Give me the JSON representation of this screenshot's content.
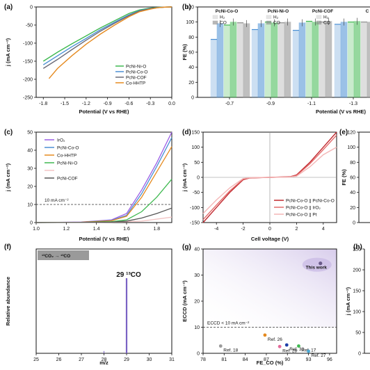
{
  "chart_data": [
    {
      "panel": "(a)",
      "type": "line",
      "xlabel": "Potential (V vs RHE)",
      "ylabel": "j (mA cm⁻²)",
      "xlim": [
        -1.9,
        0.0
      ],
      "ylim": [
        -250,
        0
      ],
      "xticks": [
        "-1.8",
        "-1.5",
        "-1.2",
        "-0.9",
        "-0.6",
        "-0.3",
        "0.0"
      ],
      "yticks": [
        "0",
        "-50",
        "-100",
        "-150",
        "-200",
        "-250"
      ],
      "legend": "bottom-right",
      "series": [
        {
          "name": "PcNi-Ni-O",
          "color": "#3fb950",
          "x": [
            -1.8,
            -1.6,
            -1.4,
            -1.2,
            -1.0,
            -0.8,
            -0.6,
            -0.45,
            -0.3,
            -0.2,
            -0.1,
            0.0
          ],
          "y": [
            -150,
            -125,
            -102,
            -80,
            -58,
            -38,
            -18,
            -8,
            -3,
            -1,
            -0.5,
            0
          ]
        },
        {
          "name": "PcNi-Co-O",
          "color": "#4a8fd4",
          "x": [
            -1.8,
            -1.6,
            -1.4,
            -1.2,
            -1.0,
            -0.8,
            -0.6,
            -0.45,
            -0.3,
            -0.2,
            -0.1,
            0.0
          ],
          "y": [
            -160,
            -135,
            -110,
            -87,
            -63,
            -42,
            -22,
            -10,
            -4,
            -1.5,
            -0.5,
            0
          ]
        },
        {
          "name": "PcNi-COF",
          "color": "#6b6b78",
          "x": [
            -1.8,
            -1.6,
            -1.4,
            -1.2,
            -1.0,
            -0.8,
            -0.6,
            -0.45,
            -0.3,
            -0.2,
            -0.1,
            0.0
          ],
          "y": [
            -170,
            -145,
            -118,
            -92,
            -67,
            -45,
            -24,
            -11,
            -5,
            -2,
            -0.5,
            0
          ]
        },
        {
          "name": "Co-HHTP",
          "color": "#e58a1f",
          "x": [
            -1.72,
            -1.6,
            -1.4,
            -1.2,
            -1.0,
            -0.8,
            -0.6,
            -0.45,
            -0.3,
            -0.2,
            -0.1,
            0.0
          ],
          "y": [
            -198,
            -170,
            -135,
            -103,
            -75,
            -50,
            -27,
            -13,
            -6,
            -2,
            -0.5,
            0
          ]
        }
      ]
    },
    {
      "panel": "(b)",
      "type": "bar",
      "xlabel": "Potential (V vs RHE)",
      "ylabel": "FE (%)",
      "ylim": [
        0,
        120
      ],
      "yticks": [
        "0",
        "20",
        "40",
        "60",
        "80",
        "100",
        "120"
      ],
      "categories": [
        "-0.7",
        "-0.9",
        "-1.1",
        "-1.3"
      ],
      "group_labels": [
        "PcNi-Co-O",
        "PcNi-Ni-O",
        "PcNi-COF",
        "C"
      ],
      "legend_entries": [
        "H₂",
        "CO"
      ],
      "series": [
        {
          "name": "PcNi-Co-O",
          "color": "#4a8fd4",
          "h2": [
            77,
            90,
            89,
            97
          ],
          "co": [
            98,
            98,
            99,
            100
          ]
        },
        {
          "name": "PcNi-Ni-O",
          "color": "#3fb950",
          "h2": [
            96,
            100,
            101,
            100
          ],
          "co": [
            100,
            99,
            100,
            101
          ]
        },
        {
          "name": "PcNi-COF",
          "color": "#8c8c8c",
          "h2": [
            99,
            99,
            100,
            100
          ],
          "co": [
            98,
            100,
            101,
            100
          ]
        }
      ]
    },
    {
      "panel": "(c)",
      "type": "line",
      "xlabel": "Potential (V vs RHE)",
      "ylabel": "j (mA cm⁻²)",
      "xlim": [
        1.0,
        1.9
      ],
      "ylim": [
        0,
        50
      ],
      "xticks": [
        "1.0",
        "1.2",
        "1.4",
        "1.6",
        "1.8"
      ],
      "yticks": [
        "0",
        "10",
        "20",
        "30",
        "40",
        "50"
      ],
      "annotation": "10 mA cm⁻²",
      "reference_y": 10,
      "legend": "top-left",
      "series": [
        {
          "name": "IrO₂",
          "color": "#9b5de5",
          "x": [
            1.0,
            1.3,
            1.5,
            1.6,
            1.7,
            1.8,
            1.9
          ],
          "y": [
            0,
            0.3,
            1.5,
            5,
            18,
            33,
            50
          ]
        },
        {
          "name": "PcNi-Co-O",
          "color": "#4a8fd4",
          "x": [
            1.0,
            1.3,
            1.5,
            1.6,
            1.7,
            1.8,
            1.9
          ],
          "y": [
            0,
            0.2,
            1.2,
            4,
            16,
            31,
            47
          ]
        },
        {
          "name": "Co-HHTP",
          "color": "#e58a1f",
          "x": [
            1.0,
            1.3,
            1.5,
            1.6,
            1.7,
            1.8,
            1.9
          ],
          "y": [
            0,
            0.2,
            1,
            3.5,
            14,
            28,
            42
          ]
        },
        {
          "name": "PcNi-Ni-O",
          "color": "#3fb950",
          "x": [
            1.0,
            1.3,
            1.5,
            1.6,
            1.7,
            1.8,
            1.9
          ],
          "y": [
            0,
            0.1,
            0.5,
            1.5,
            6,
            14,
            24
          ]
        },
        {
          "name": "",
          "color": "#f2c4c4",
          "x": [
            1.0,
            1.3,
            1.5,
            1.7,
            1.9
          ],
          "y": [
            0,
            0.1,
            0.2,
            0.8,
            3
          ]
        },
        {
          "name": "PcNi-COF",
          "color": "#555555",
          "x": [
            1.0,
            1.3,
            1.5,
            1.6,
            1.7,
            1.8,
            1.9
          ],
          "y": [
            0,
            0.1,
            0.3,
            0.8,
            2.5,
            5,
            8
          ]
        }
      ]
    },
    {
      "panel": "(d)",
      "type": "line",
      "xlabel": "Cell voltage (V)",
      "ylabel": "j (mA cm⁻²)",
      "xlim": [
        -5,
        5
      ],
      "ylim": [
        -150,
        150
      ],
      "xticks": [
        "-4",
        "-2",
        "0",
        "2",
        "4"
      ],
      "yticks": [
        "150",
        "100",
        "50",
        "0",
        "-50",
        "-100",
        "-150"
      ],
      "legend": "bottom-right",
      "series": [
        {
          "name": "PcNi-Co-O || PcNi-Co-O",
          "color": "#c0282e",
          "x": [
            -5,
            -4,
            -3,
            -2,
            -1.5,
            0,
            1.5,
            2,
            3,
            4,
            5
          ],
          "y": [
            -150,
            -100,
            -50,
            -8,
            -2,
            0,
            2,
            8,
            50,
            100,
            150
          ]
        },
        {
          "name": "PcNi-Co-O || IrO₂",
          "color": "#e36a6a",
          "x": [
            -5,
            -4,
            -3,
            -2,
            -1.5,
            0,
            1.5,
            2,
            3,
            4,
            5
          ],
          "y": [
            -140,
            -92,
            -45,
            -6,
            -1.5,
            0,
            1.5,
            6,
            45,
            92,
            140
          ]
        },
        {
          "name": "PcNi-Co-O || Pt",
          "color": "#f4b6b6",
          "x": [
            -5,
            -4,
            -3,
            -2,
            -1.5,
            0,
            1.5,
            2,
            3,
            4,
            5
          ],
          "y": [
            -120,
            -75,
            -35,
            -4,
            -1,
            0,
            1,
            4,
            35,
            75,
            100
          ]
        }
      ]
    },
    {
      "panel": "(e)",
      "type": "bar",
      "ylabel": "FE (%)",
      "ylim": [
        0,
        120
      ],
      "yticks": [
        "0",
        "20",
        "40",
        "60",
        "80",
        "100",
        "120"
      ]
    },
    {
      "panel": "(f)",
      "type": "bar",
      "xlabel": "m/z",
      "ylabel": "Relative abundance",
      "xlim": [
        25,
        31
      ],
      "xticks": [
        "25",
        "26",
        "27",
        "28",
        "29",
        "30",
        "31"
      ],
      "title_box": "¹³CO₂ → ¹³CO",
      "peak_label": "29 ¹³CO",
      "peaks": [
        {
          "x": 28,
          "value": 0.03
        },
        {
          "x": 29,
          "value": 1.0
        }
      ]
    },
    {
      "panel": "(g)",
      "type": "scatter",
      "xlabel": "FE_CO (%)",
      "ylabel": "ECCD (mA cm⁻²)",
      "xlim": [
        78,
        97
      ],
      "ylim": [
        0,
        40
      ],
      "xticks": [
        "78",
        "81",
        "84",
        "87",
        "90",
        "93",
        "96"
      ],
      "yticks": [
        "0",
        "10",
        "20",
        "30",
        "40"
      ],
      "threshold_label": "ECCD < 10 mA cm⁻²",
      "threshold": 10,
      "points": [
        {
          "label": "Ref. 18",
          "x": 80.5,
          "y": 2.8,
          "color": "#9a9a9a"
        },
        {
          "label": "Ref. 26",
          "x": 86.8,
          "y": 7,
          "color": "#e58a1f"
        },
        {
          "label": "Ref. 28",
          "x": 88.9,
          "y": 2.6,
          "color": "#e36a9a"
        },
        {
          "label": "Ref. 30",
          "x": 89.9,
          "y": 3.2,
          "color": "#1f3fa8"
        },
        {
          "label": "Ref. 17",
          "x": 91.6,
          "y": 2.8,
          "color": "#3fb950"
        },
        {
          "label": "Ref. 27",
          "x": 93.0,
          "y": 0.8,
          "color": "#4aa8d4"
        },
        {
          "label": "This work",
          "x": 94.7,
          "y": 34.5,
          "color": "#6a5a8a"
        }
      ]
    },
    {
      "panel": "(h)",
      "type": "line",
      "ylabel": "j (mA cm⁻²)",
      "ylim": [
        0,
        250
      ],
      "yticks": [
        "0",
        "50",
        "100",
        "150",
        "200",
        "250"
      ]
    }
  ]
}
